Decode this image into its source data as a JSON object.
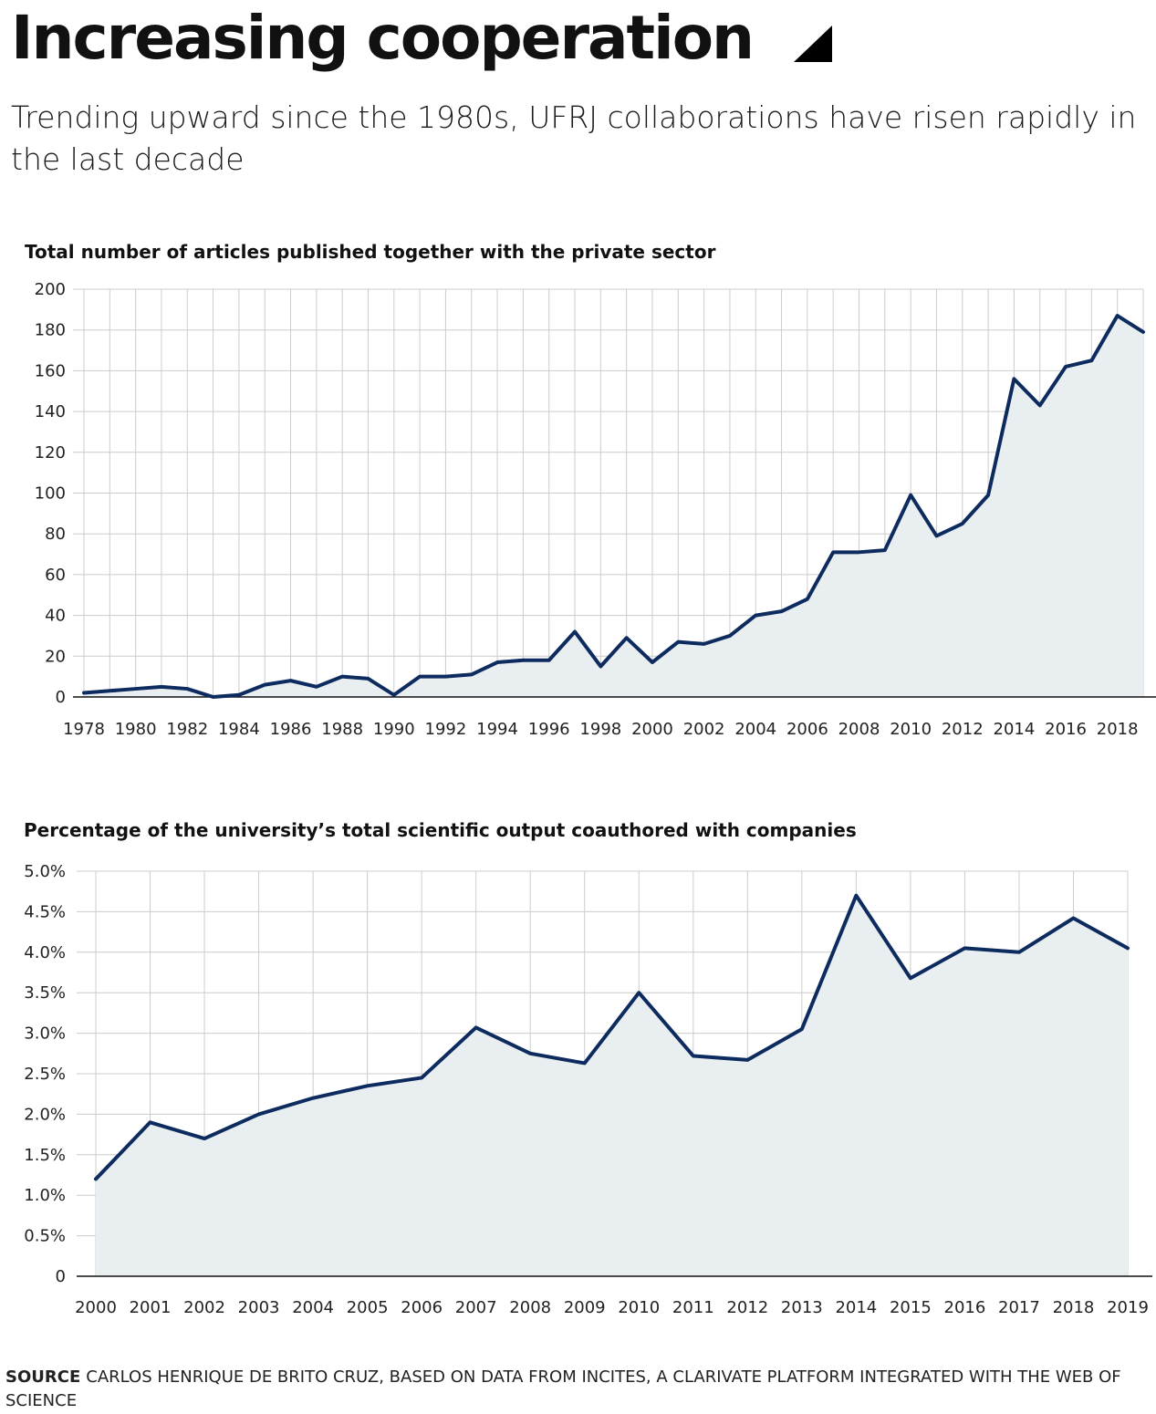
{
  "header": {
    "title": "Increasing cooperation",
    "subtitle": "Trending upward since the 1980s, UFRJ collaborations have risen rapidly in the last decade"
  },
  "colors": {
    "line": "#0d2b5e",
    "area": "#e9eff1",
    "grid": "#cccccc",
    "axis": "#111111"
  },
  "chart_data": [
    {
      "type": "area",
      "title": "Total number of articles published together with the private sector",
      "xlabel": "",
      "ylabel": "",
      "x": [
        1978,
        1979,
        1980,
        1981,
        1982,
        1983,
        1984,
        1985,
        1986,
        1987,
        1988,
        1989,
        1990,
        1991,
        1992,
        1993,
        1994,
        1995,
        1996,
        1997,
        1998,
        1999,
        2000,
        2001,
        2002,
        2003,
        2004,
        2005,
        2006,
        2007,
        2008,
        2009,
        2010,
        2011,
        2012,
        2013,
        2014,
        2015,
        2016,
        2017,
        2018,
        2019
      ],
      "values": [
        2,
        3,
        4,
        5,
        4,
        0,
        1,
        6,
        8,
        5,
        10,
        9,
        1,
        10,
        10,
        11,
        17,
        18,
        18,
        32,
        15,
        29,
        17,
        27,
        26,
        30,
        40,
        42,
        48,
        71,
        71,
        72,
        99,
        79,
        85,
        99,
        156,
        143,
        162,
        165,
        187,
        179
      ],
      "x_tick_labels": [
        "1978",
        "1980",
        "1982",
        "1984",
        "1986",
        "1988",
        "1990",
        "1992",
        "1994",
        "1996",
        "1998",
        "2000",
        "2002",
        "2004",
        "2006",
        "2008",
        "2010",
        "2012",
        "2014",
        "2016",
        "2018"
      ],
      "y_tick_labels": [
        "0",
        "20",
        "40",
        "60",
        "80",
        "100",
        "120",
        "140",
        "160",
        "180",
        "200"
      ],
      "ylim": [
        0,
        200
      ],
      "grid": true
    },
    {
      "type": "area",
      "title": "Percentage of the university’s total scientific output coauthored with companies",
      "xlabel": "",
      "ylabel": "",
      "categories": [
        "2000",
        "2001",
        "2002",
        "2003",
        "2004",
        "2005",
        "2006",
        "2007",
        "2008",
        "2009",
        "2010",
        "2011",
        "2012",
        "2013",
        "2014",
        "2015",
        "2016",
        "2017",
        "2018",
        "2019"
      ],
      "values": [
        1.2,
        1.9,
        1.7,
        2.0,
        2.2,
        2.35,
        2.45,
        3.07,
        2.75,
        2.63,
        3.5,
        2.72,
        2.67,
        3.05,
        4.7,
        3.68,
        4.05,
        4.0,
        4.42,
        4.05
      ],
      "y_tick_labels": [
        "0",
        "0.5%",
        "1.0%",
        "1.5%",
        "2.0%",
        "2.5%",
        "3.0%",
        "3.5%",
        "4.0%",
        "4.5%",
        "5.0%"
      ],
      "ylim": [
        0,
        5.0
      ],
      "grid": true
    }
  ],
  "source": {
    "label": "SOURCE",
    "text": "CARLOS HENRIQUE DE BRITO CRUZ, BASED ON DATA FROM INCITES, A CLARIVATE PLATFORM INTEGRATED WITH THE WEB OF SCIENCE"
  }
}
